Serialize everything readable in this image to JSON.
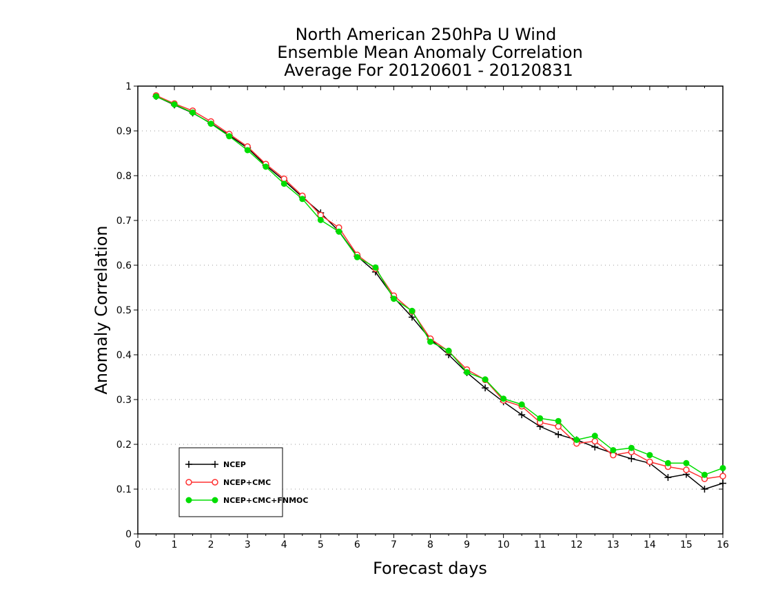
{
  "chart_data": {
    "type": "line",
    "title": [
      "North American 250hPa U Wind",
      "Ensemble Mean Anomaly Correlation",
      "Average For 20120601 - 20120831"
    ],
    "xlabel": "Forecast days",
    "ylabel": "Anomaly Correlation",
    "xlim": [
      0,
      16
    ],
    "ylim": [
      0,
      1
    ],
    "xticks": [
      0,
      1,
      2,
      3,
      4,
      5,
      6,
      7,
      8,
      9,
      10,
      11,
      12,
      13,
      14,
      15,
      16
    ],
    "yticks": [
      0,
      0.1,
      0.2,
      0.3,
      0.4,
      0.5,
      0.6,
      0.7,
      0.8,
      0.9,
      1
    ],
    "ytick_labels": [
      "0",
      "0.1",
      "0.2",
      "0.3",
      "0.4",
      "0.5",
      "0.6",
      "0.7",
      "0.8",
      "0.9",
      "1"
    ],
    "grid": "horizontal-dotted",
    "legend_position": "bottom-left",
    "x": [
      0.5,
      1,
      1.5,
      2,
      2.5,
      3,
      3.5,
      4,
      4.5,
      5,
      5.5,
      6,
      6.5,
      7,
      7.5,
      8,
      8.5,
      9,
      9.5,
      10,
      10.5,
      11,
      11.5,
      12,
      12.5,
      13,
      13.5,
      14,
      14.5,
      15,
      15.5,
      16
    ],
    "series": [
      {
        "name": "NCEP",
        "color": "#000000",
        "marker": "plus",
        "values": [
          0.977,
          0.958,
          0.94,
          0.917,
          0.89,
          0.862,
          0.823,
          0.789,
          0.752,
          0.717,
          0.676,
          0.62,
          0.585,
          0.528,
          0.484,
          0.435,
          0.4,
          0.36,
          0.326,
          0.295,
          0.266,
          0.24,
          0.222,
          0.21,
          0.194,
          0.18,
          0.168,
          0.158,
          0.126,
          0.133,
          0.1,
          0.113
        ]
      },
      {
        "name": "NCEP+CMC",
        "color": "#ff3030",
        "marker": "open-circle",
        "values": [
          0.979,
          0.961,
          0.945,
          0.921,
          0.893,
          0.865,
          0.826,
          0.793,
          0.755,
          0.712,
          0.684,
          0.623,
          0.592,
          0.532,
          0.497,
          0.436,
          0.408,
          0.367,
          0.344,
          0.298,
          0.285,
          0.249,
          0.24,
          0.202,
          0.207,
          0.176,
          0.183,
          0.161,
          0.15,
          0.143,
          0.123,
          0.129
        ]
      },
      {
        "name": "NCEP+CMC+FNMOC",
        "color": "#00dd00",
        "marker": "filled-circle",
        "values": [
          0.977,
          0.959,
          0.941,
          0.916,
          0.888,
          0.857,
          0.82,
          0.782,
          0.748,
          0.701,
          0.675,
          0.618,
          0.595,
          0.525,
          0.498,
          0.429,
          0.409,
          0.361,
          0.345,
          0.302,
          0.289,
          0.258,
          0.252,
          0.21,
          0.219,
          0.187,
          0.192,
          0.176,
          0.158,
          0.158,
          0.132,
          0.147
        ]
      }
    ]
  }
}
